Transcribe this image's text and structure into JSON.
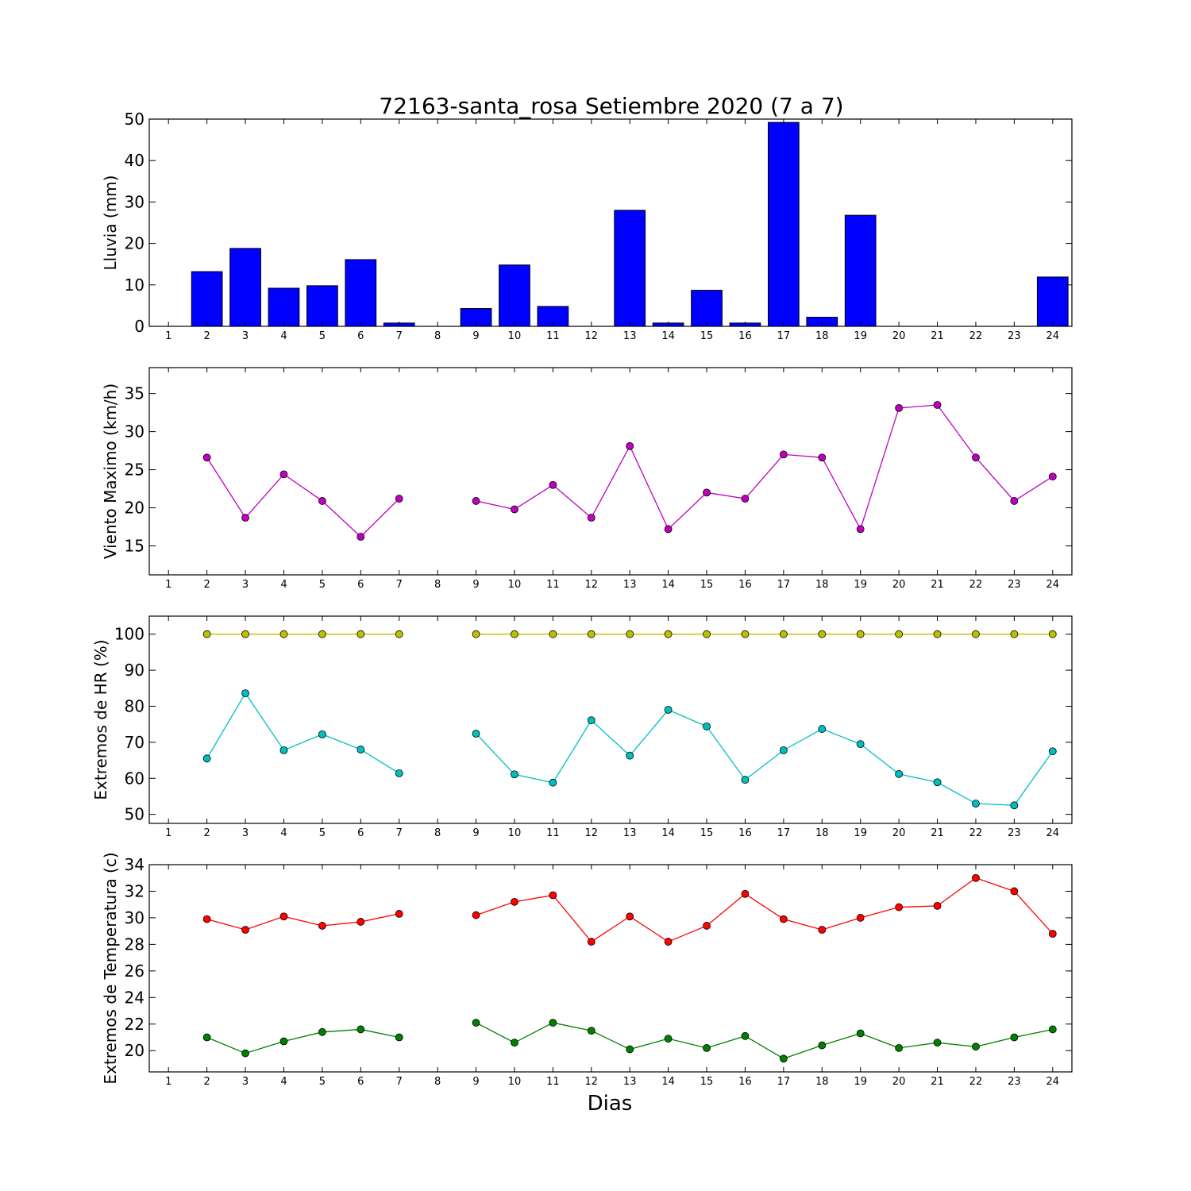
{
  "figure": {
    "title": "72163-santa_rosa Setiembre 2020  (7 a 7)",
    "xlabel": "Dias"
  },
  "chart_data": [
    {
      "type": "bar",
      "ylabel": "Lluvia (mm)",
      "ylim": [
        0,
        50
      ],
      "yticks": [
        0,
        10,
        20,
        30,
        40,
        50
      ],
      "x": [
        1,
        2,
        3,
        4,
        5,
        6,
        7,
        8,
        9,
        10,
        11,
        12,
        13,
        14,
        15,
        16,
        17,
        18,
        19,
        20,
        21,
        22,
        23,
        24
      ],
      "series": [
        {
          "values": [
            0,
            13.2,
            18.8,
            9.2,
            9.8,
            16.1,
            0.8,
            0,
            4.3,
            14.8,
            4.8,
            0,
            28,
            0.8,
            8.7,
            0.8,
            49.2,
            2.2,
            26.8,
            0,
            0,
            0,
            0,
            11.9
          ],
          "color": "#0000ff"
        }
      ],
      "grid": false
    },
    {
      "type": "line",
      "ylabel": "Viento Maximo (km/h)",
      "ylim": [
        11.2,
        38.4
      ],
      "yticks": [
        15,
        20,
        25,
        30,
        35
      ],
      "x": [
        1,
        2,
        3,
        4,
        5,
        6,
        7,
        8,
        9,
        10,
        11,
        12,
        13,
        14,
        15,
        16,
        17,
        18,
        19,
        20,
        21,
        22,
        23,
        24
      ],
      "series": [
        {
          "values": [
            null,
            26.6,
            18.7,
            24.4,
            20.9,
            16.2,
            21.2,
            null,
            20.9,
            19.8,
            23.0,
            18.7,
            28.1,
            17.2,
            22.0,
            21.2,
            27.0,
            26.6,
            17.2,
            33.1,
            33.5,
            26.6,
            20.9,
            24.1
          ],
          "color": "#bf00bf"
        }
      ],
      "grid": false
    },
    {
      "type": "line",
      "ylabel": "Extremos de HR (%)",
      "ylim": [
        47.5,
        105
      ],
      "yticks": [
        50,
        60,
        70,
        80,
        90,
        100
      ],
      "x": [
        1,
        2,
        3,
        4,
        5,
        6,
        7,
        8,
        9,
        10,
        11,
        12,
        13,
        14,
        15,
        16,
        17,
        18,
        19,
        20,
        21,
        22,
        23,
        24
      ],
      "series": [
        {
          "values": [
            null,
            100,
            100,
            100,
            100,
            100,
            100,
            null,
            100,
            100,
            100,
            100,
            100,
            100,
            100,
            100,
            100,
            100,
            100,
            100,
            100,
            100,
            100,
            100
          ],
          "color": "#bfbf00"
        },
        {
          "values": [
            null,
            65.5,
            83.6,
            67.8,
            72.2,
            68.0,
            61.4,
            null,
            72.4,
            61.1,
            58.8,
            76.1,
            66.3,
            79.0,
            74.4,
            59.6,
            67.8,
            73.7,
            69.5,
            61.2,
            58.9,
            53.0,
            52.5,
            67.5
          ],
          "color": "#00bfbf"
        }
      ],
      "grid": false
    },
    {
      "type": "line",
      "ylabel": "Extremos de Temperatura (c)",
      "ylim": [
        18.4,
        34
      ],
      "yticks": [
        20,
        22,
        24,
        26,
        28,
        30,
        32,
        34
      ],
      "x": [
        1,
        2,
        3,
        4,
        5,
        6,
        7,
        8,
        9,
        10,
        11,
        12,
        13,
        14,
        15,
        16,
        17,
        18,
        19,
        20,
        21,
        22,
        23,
        24
      ],
      "series": [
        {
          "values": [
            null,
            29.9,
            29.1,
            30.1,
            29.4,
            29.7,
            30.3,
            null,
            30.2,
            31.2,
            31.7,
            28.2,
            30.1,
            28.2,
            29.4,
            31.8,
            29.9,
            29.1,
            30.0,
            30.8,
            30.9,
            33.0,
            32.0,
            28.8
          ],
          "color": "#ff0000"
        },
        {
          "values": [
            null,
            21.0,
            19.8,
            20.7,
            21.4,
            21.6,
            21.0,
            null,
            22.1,
            20.6,
            22.1,
            21.5,
            20.1,
            20.9,
            20.2,
            21.1,
            19.4,
            20.4,
            21.3,
            20.2,
            20.6,
            20.3,
            21.0,
            21.6
          ],
          "color": "#008000"
        }
      ],
      "grid": false
    }
  ]
}
